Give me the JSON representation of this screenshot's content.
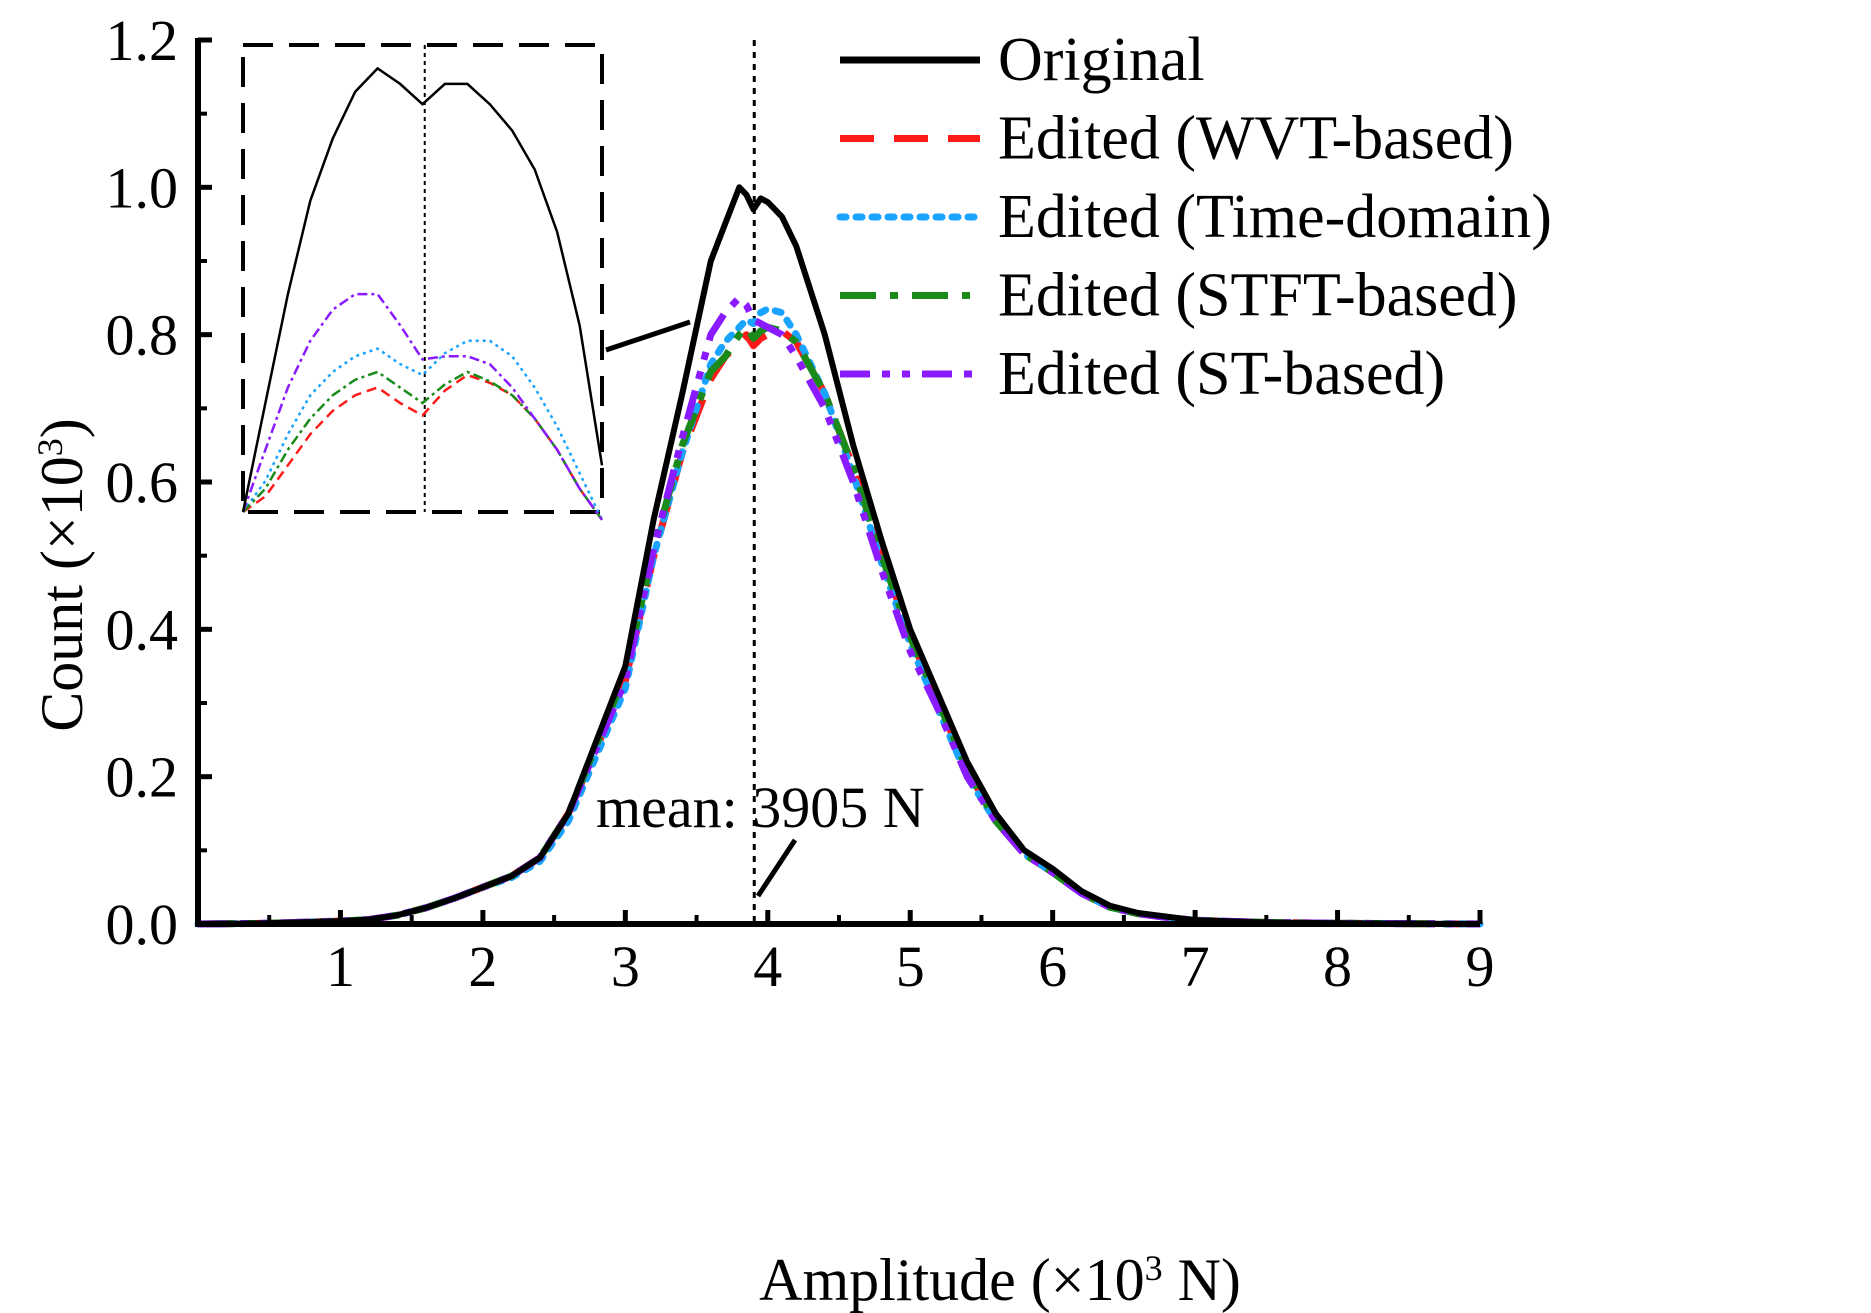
{
  "chart_data": {
    "type": "line",
    "title": "",
    "xlabel_main": "Amplitude (×10",
    "xlabel_sup": "3",
    "xlabel_tail": " N)",
    "ylabel_main": "Count (×10",
    "ylabel_sup": "3",
    "ylabel_tail": ")",
    "xlim": [
      0,
      9
    ],
    "ylim": [
      0,
      1.2
    ],
    "x_ticks": [
      1,
      2,
      3,
      4,
      5,
      6,
      7,
      8,
      9
    ],
    "x_tick_labels": [
      "1",
      "2",
      "3",
      "4",
      "5",
      "6",
      "7",
      "8",
      "9"
    ],
    "y_ticks": [
      0,
      0.2,
      0.4,
      0.6,
      0.8,
      1.0,
      1.2
    ],
    "y_tick_labels": [
      "0.0",
      "0.2",
      "0.4",
      "0.6",
      "0.8",
      "1.0",
      "1.2"
    ],
    "legend_position": "top-right",
    "mean_value": 3.905,
    "mean_label": "mean: 3905 N",
    "x": [
      0.0,
      0.5,
      1.0,
      1.2,
      1.4,
      1.6,
      1.8,
      2.0,
      2.2,
      2.4,
      2.6,
      2.8,
      3.0,
      3.2,
      3.4,
      3.6,
      3.7,
      3.8,
      3.85,
      3.9,
      3.95,
      4.0,
      4.1,
      4.2,
      4.4,
      4.6,
      4.8,
      5.0,
      5.2,
      5.4,
      5.6,
      5.8,
      6.0,
      6.2,
      6.4,
      6.6,
      6.8,
      7.0,
      7.5,
      8.0,
      9.0
    ],
    "series": [
      {
        "name": "Original",
        "color": "#000000",
        "style": "solid",
        "values": [
          0.0,
          0.001,
          0.004,
          0.006,
          0.012,
          0.022,
          0.035,
          0.05,
          0.065,
          0.09,
          0.15,
          0.25,
          0.35,
          0.55,
          0.72,
          0.9,
          0.95,
          1.0,
          0.99,
          0.97,
          0.985,
          0.98,
          0.96,
          0.92,
          0.8,
          0.65,
          0.52,
          0.4,
          0.31,
          0.22,
          0.15,
          0.1,
          0.075,
          0.045,
          0.025,
          0.015,
          0.01,
          0.005,
          0.002,
          0.001,
          0.0
        ]
      },
      {
        "name": "Edited (WVT-based)",
        "color": "#ff1a1a",
        "style": "dashed",
        "values": [
          0.0,
          0.001,
          0.004,
          0.006,
          0.012,
          0.022,
          0.035,
          0.05,
          0.065,
          0.09,
          0.15,
          0.24,
          0.33,
          0.5,
          0.64,
          0.74,
          0.77,
          0.79,
          0.8,
          0.785,
          0.795,
          0.8,
          0.805,
          0.79,
          0.72,
          0.62,
          0.5,
          0.39,
          0.3,
          0.21,
          0.14,
          0.095,
          0.07,
          0.042,
          0.023,
          0.014,
          0.009,
          0.005,
          0.002,
          0.001,
          0.0
        ]
      },
      {
        "name": "Edited (Time-domain)",
        "color": "#1aa3ff",
        "style": "dotted",
        "values": [
          0.0,
          0.001,
          0.004,
          0.006,
          0.012,
          0.022,
          0.035,
          0.05,
          0.063,
          0.085,
          0.14,
          0.23,
          0.32,
          0.5,
          0.64,
          0.76,
          0.79,
          0.81,
          0.82,
          0.815,
          0.83,
          0.835,
          0.83,
          0.8,
          0.72,
          0.61,
          0.49,
          0.38,
          0.29,
          0.2,
          0.14,
          0.095,
          0.07,
          0.042,
          0.023,
          0.014,
          0.009,
          0.005,
          0.002,
          0.001,
          0.0
        ]
      },
      {
        "name": "Edited (STFT-based)",
        "color": "#1a8a1a",
        "style": "dashdot",
        "values": [
          0.0,
          0.001,
          0.004,
          0.006,
          0.012,
          0.022,
          0.035,
          0.05,
          0.065,
          0.09,
          0.15,
          0.245,
          0.34,
          0.51,
          0.65,
          0.75,
          0.77,
          0.8,
          0.81,
          0.795,
          0.805,
          0.81,
          0.805,
          0.79,
          0.72,
          0.62,
          0.5,
          0.39,
          0.3,
          0.21,
          0.14,
          0.095,
          0.07,
          0.042,
          0.023,
          0.014,
          0.009,
          0.005,
          0.002,
          0.001,
          0.0
        ]
      },
      {
        "name": "Edited (ST-based)",
        "color": "#8a1aff",
        "style": "dashdotdot",
        "values": [
          0.0,
          0.001,
          0.004,
          0.006,
          0.012,
          0.022,
          0.035,
          0.05,
          0.065,
          0.09,
          0.15,
          0.24,
          0.33,
          0.51,
          0.66,
          0.8,
          0.83,
          0.85,
          0.84,
          0.82,
          0.815,
          0.81,
          0.8,
          0.77,
          0.7,
          0.6,
          0.48,
          0.37,
          0.29,
          0.2,
          0.14,
          0.095,
          0.07,
          0.042,
          0.023,
          0.014,
          0.009,
          0.005,
          0.002,
          0.001,
          0.0
        ]
      }
    ],
    "inset": {
      "xlim": [
        3.5,
        4.3
      ],
      "ylim": [
        0.72,
        1.02
      ],
      "x": [
        3.5,
        3.55,
        3.6,
        3.65,
        3.7,
        3.75,
        3.8,
        3.85,
        3.9,
        3.95,
        4.0,
        4.05,
        4.1,
        4.15,
        4.2,
        4.25,
        4.3
      ],
      "series": [
        {
          "name": "Original",
          "values": [
            0.72,
            0.79,
            0.86,
            0.92,
            0.96,
            0.99,
            1.005,
            0.995,
            0.982,
            0.995,
            0.995,
            0.982,
            0.965,
            0.94,
            0.9,
            0.84,
            0.75
          ]
        },
        {
          "name": "Edited (WVT-based)",
          "values": [
            0.72,
            0.73,
            0.75,
            0.77,
            0.785,
            0.795,
            0.8,
            0.79,
            0.782,
            0.798,
            0.808,
            0.803,
            0.795,
            0.78,
            0.76,
            0.735,
            0.715
          ]
        },
        {
          "name": "Edited (Time-domain)",
          "values": [
            0.72,
            0.74,
            0.77,
            0.795,
            0.81,
            0.82,
            0.825,
            0.815,
            0.808,
            0.822,
            0.83,
            0.83,
            0.82,
            0.8,
            0.775,
            0.745,
            0.715
          ]
        },
        {
          "name": "Edited (STFT-based)",
          "values": [
            0.72,
            0.735,
            0.76,
            0.78,
            0.795,
            0.805,
            0.81,
            0.8,
            0.79,
            0.802,
            0.81,
            0.804,
            0.795,
            0.78,
            0.76,
            0.735,
            0.715
          ]
        },
        {
          "name": "Edited (ST-based)",
          "values": [
            0.72,
            0.76,
            0.8,
            0.83,
            0.85,
            0.86,
            0.86,
            0.84,
            0.818,
            0.82,
            0.82,
            0.815,
            0.8,
            0.78,
            0.76,
            0.735,
            0.715
          ]
        }
      ]
    }
  }
}
